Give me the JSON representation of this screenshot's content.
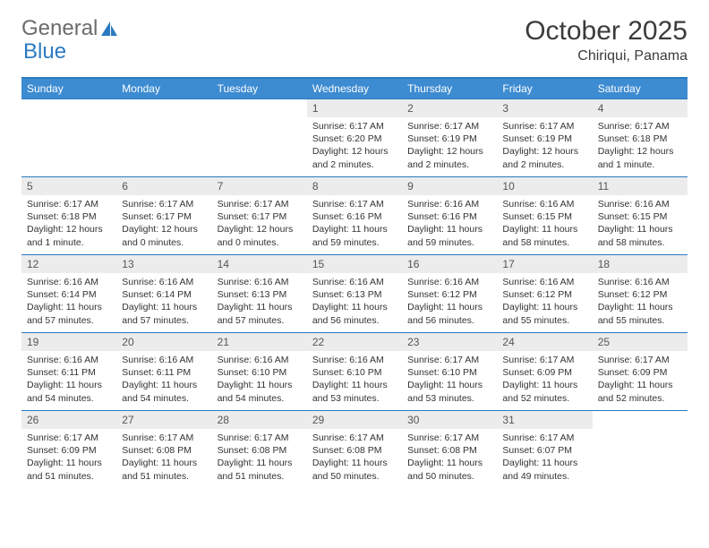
{
  "logo": {
    "text1": "General",
    "text2": "Blue"
  },
  "title": "October 2025",
  "location": "Chiriqui, Panama",
  "colors": {
    "header_bg": "#3d8bd1",
    "accent": "#2b7ac0",
    "daynum_bg": "#ececec",
    "text": "#333333"
  },
  "day_headers": [
    "Sunday",
    "Monday",
    "Tuesday",
    "Wednesday",
    "Thursday",
    "Friday",
    "Saturday"
  ],
  "weeks": [
    [
      {
        "num": "",
        "lines": []
      },
      {
        "num": "",
        "lines": []
      },
      {
        "num": "",
        "lines": []
      },
      {
        "num": "1",
        "lines": [
          "Sunrise: 6:17 AM",
          "Sunset: 6:20 PM",
          "Daylight: 12 hours and 2 minutes."
        ]
      },
      {
        "num": "2",
        "lines": [
          "Sunrise: 6:17 AM",
          "Sunset: 6:19 PM",
          "Daylight: 12 hours and 2 minutes."
        ]
      },
      {
        "num": "3",
        "lines": [
          "Sunrise: 6:17 AM",
          "Sunset: 6:19 PM",
          "Daylight: 12 hours and 2 minutes."
        ]
      },
      {
        "num": "4",
        "lines": [
          "Sunrise: 6:17 AM",
          "Sunset: 6:18 PM",
          "Daylight: 12 hours and 1 minute."
        ]
      }
    ],
    [
      {
        "num": "5",
        "lines": [
          "Sunrise: 6:17 AM",
          "Sunset: 6:18 PM",
          "Daylight: 12 hours and 1 minute."
        ]
      },
      {
        "num": "6",
        "lines": [
          "Sunrise: 6:17 AM",
          "Sunset: 6:17 PM",
          "Daylight: 12 hours and 0 minutes."
        ]
      },
      {
        "num": "7",
        "lines": [
          "Sunrise: 6:17 AM",
          "Sunset: 6:17 PM",
          "Daylight: 12 hours and 0 minutes."
        ]
      },
      {
        "num": "8",
        "lines": [
          "Sunrise: 6:17 AM",
          "Sunset: 6:16 PM",
          "Daylight: 11 hours and 59 minutes."
        ]
      },
      {
        "num": "9",
        "lines": [
          "Sunrise: 6:16 AM",
          "Sunset: 6:16 PM",
          "Daylight: 11 hours and 59 minutes."
        ]
      },
      {
        "num": "10",
        "lines": [
          "Sunrise: 6:16 AM",
          "Sunset: 6:15 PM",
          "Daylight: 11 hours and 58 minutes."
        ]
      },
      {
        "num": "11",
        "lines": [
          "Sunrise: 6:16 AM",
          "Sunset: 6:15 PM",
          "Daylight: 11 hours and 58 minutes."
        ]
      }
    ],
    [
      {
        "num": "12",
        "lines": [
          "Sunrise: 6:16 AM",
          "Sunset: 6:14 PM",
          "Daylight: 11 hours and 57 minutes."
        ]
      },
      {
        "num": "13",
        "lines": [
          "Sunrise: 6:16 AM",
          "Sunset: 6:14 PM",
          "Daylight: 11 hours and 57 minutes."
        ]
      },
      {
        "num": "14",
        "lines": [
          "Sunrise: 6:16 AM",
          "Sunset: 6:13 PM",
          "Daylight: 11 hours and 57 minutes."
        ]
      },
      {
        "num": "15",
        "lines": [
          "Sunrise: 6:16 AM",
          "Sunset: 6:13 PM",
          "Daylight: 11 hours and 56 minutes."
        ]
      },
      {
        "num": "16",
        "lines": [
          "Sunrise: 6:16 AM",
          "Sunset: 6:12 PM",
          "Daylight: 11 hours and 56 minutes."
        ]
      },
      {
        "num": "17",
        "lines": [
          "Sunrise: 6:16 AM",
          "Sunset: 6:12 PM",
          "Daylight: 11 hours and 55 minutes."
        ]
      },
      {
        "num": "18",
        "lines": [
          "Sunrise: 6:16 AM",
          "Sunset: 6:12 PM",
          "Daylight: 11 hours and 55 minutes."
        ]
      }
    ],
    [
      {
        "num": "19",
        "lines": [
          "Sunrise: 6:16 AM",
          "Sunset: 6:11 PM",
          "Daylight: 11 hours and 54 minutes."
        ]
      },
      {
        "num": "20",
        "lines": [
          "Sunrise: 6:16 AM",
          "Sunset: 6:11 PM",
          "Daylight: 11 hours and 54 minutes."
        ]
      },
      {
        "num": "21",
        "lines": [
          "Sunrise: 6:16 AM",
          "Sunset: 6:10 PM",
          "Daylight: 11 hours and 54 minutes."
        ]
      },
      {
        "num": "22",
        "lines": [
          "Sunrise: 6:16 AM",
          "Sunset: 6:10 PM",
          "Daylight: 11 hours and 53 minutes."
        ]
      },
      {
        "num": "23",
        "lines": [
          "Sunrise: 6:17 AM",
          "Sunset: 6:10 PM",
          "Daylight: 11 hours and 53 minutes."
        ]
      },
      {
        "num": "24",
        "lines": [
          "Sunrise: 6:17 AM",
          "Sunset: 6:09 PM",
          "Daylight: 11 hours and 52 minutes."
        ]
      },
      {
        "num": "25",
        "lines": [
          "Sunrise: 6:17 AM",
          "Sunset: 6:09 PM",
          "Daylight: 11 hours and 52 minutes."
        ]
      }
    ],
    [
      {
        "num": "26",
        "lines": [
          "Sunrise: 6:17 AM",
          "Sunset: 6:09 PM",
          "Daylight: 11 hours and 51 minutes."
        ]
      },
      {
        "num": "27",
        "lines": [
          "Sunrise: 6:17 AM",
          "Sunset: 6:08 PM",
          "Daylight: 11 hours and 51 minutes."
        ]
      },
      {
        "num": "28",
        "lines": [
          "Sunrise: 6:17 AM",
          "Sunset: 6:08 PM",
          "Daylight: 11 hours and 51 minutes."
        ]
      },
      {
        "num": "29",
        "lines": [
          "Sunrise: 6:17 AM",
          "Sunset: 6:08 PM",
          "Daylight: 11 hours and 50 minutes."
        ]
      },
      {
        "num": "30",
        "lines": [
          "Sunrise: 6:17 AM",
          "Sunset: 6:08 PM",
          "Daylight: 11 hours and 50 minutes."
        ]
      },
      {
        "num": "31",
        "lines": [
          "Sunrise: 6:17 AM",
          "Sunset: 6:07 PM",
          "Daylight: 11 hours and 49 minutes."
        ]
      },
      {
        "num": "",
        "lines": []
      }
    ]
  ]
}
